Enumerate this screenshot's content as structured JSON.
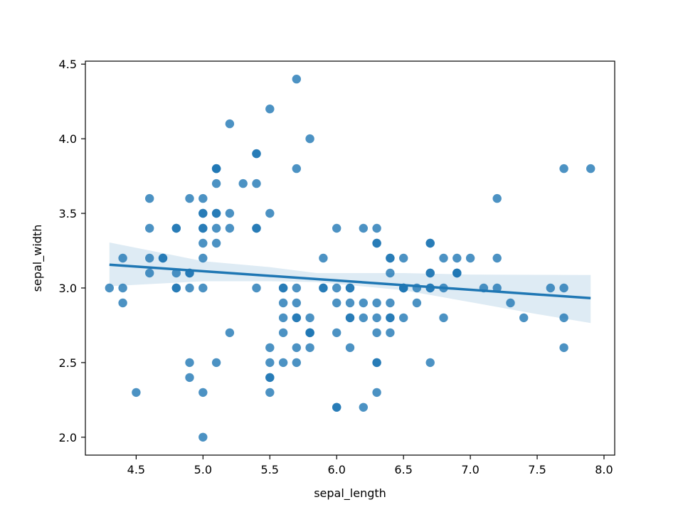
{
  "chart_data": {
    "type": "scatter",
    "title": "",
    "xlabel": "sepal_length",
    "ylabel": "sepal_width",
    "xlim": [
      4.12,
      8.08
    ],
    "ylim": [
      1.88,
      4.52
    ],
    "xticks": [
      4.5,
      5.0,
      5.5,
      6.0,
      6.5,
      7.0,
      7.5,
      8.0
    ],
    "xtick_labels": [
      "4.5",
      "5.0",
      "5.5",
      "6.0",
      "6.5",
      "7.0",
      "7.5",
      "8.0"
    ],
    "yticks": [
      2.0,
      2.5,
      3.0,
      3.5,
      4.0,
      4.5
    ],
    "ytick_labels": [
      "2.0",
      "2.5",
      "3.0",
      "3.5",
      "4.0",
      "4.5"
    ],
    "grid": false,
    "point_color": "#1f77b4",
    "line_color": "#1f77b4",
    "band_color": "#1f77b4",
    "points": [
      [
        4.3,
        3.0
      ],
      [
        4.4,
        3.2
      ],
      [
        4.4,
        3.0
      ],
      [
        4.4,
        2.9
      ],
      [
        4.5,
        2.3
      ],
      [
        4.6,
        3.6
      ],
      [
        4.6,
        3.4
      ],
      [
        4.6,
        3.2
      ],
      [
        4.6,
        3.1
      ],
      [
        4.7,
        3.2
      ],
      [
        4.7,
        3.2
      ],
      [
        4.8,
        3.4
      ],
      [
        4.8,
        3.4
      ],
      [
        4.8,
        3.1
      ],
      [
        4.8,
        3.0
      ],
      [
        4.8,
        3.0
      ],
      [
        4.9,
        3.6
      ],
      [
        4.9,
        3.1
      ],
      [
        4.9,
        3.1
      ],
      [
        4.9,
        3.0
      ],
      [
        4.9,
        2.5
      ],
      [
        4.9,
        2.4
      ],
      [
        5.0,
        3.6
      ],
      [
        5.0,
        3.5
      ],
      [
        5.0,
        3.5
      ],
      [
        5.0,
        3.4
      ],
      [
        5.0,
        3.4
      ],
      [
        5.0,
        3.3
      ],
      [
        5.0,
        3.2
      ],
      [
        5.0,
        3.0
      ],
      [
        5.0,
        2.3
      ],
      [
        5.0,
        2.0
      ],
      [
        5.1,
        3.8
      ],
      [
        5.1,
        3.8
      ],
      [
        5.1,
        3.8
      ],
      [
        5.1,
        3.7
      ],
      [
        5.1,
        3.5
      ],
      [
        5.1,
        3.5
      ],
      [
        5.1,
        3.4
      ],
      [
        5.1,
        3.3
      ],
      [
        5.1,
        2.5
      ],
      [
        5.2,
        4.1
      ],
      [
        5.2,
        3.5
      ],
      [
        5.2,
        3.4
      ],
      [
        5.2,
        2.7
      ],
      [
        5.3,
        3.7
      ],
      [
        5.4,
        3.9
      ],
      [
        5.4,
        3.9
      ],
      [
        5.4,
        3.7
      ],
      [
        5.4,
        3.4
      ],
      [
        5.4,
        3.4
      ],
      [
        5.4,
        3.0
      ],
      [
        5.5,
        4.2
      ],
      [
        5.5,
        3.5
      ],
      [
        5.5,
        2.6
      ],
      [
        5.5,
        2.5
      ],
      [
        5.5,
        2.4
      ],
      [
        5.5,
        2.4
      ],
      [
        5.5,
        2.3
      ],
      [
        5.6,
        3.0
      ],
      [
        5.6,
        3.0
      ],
      [
        5.6,
        2.9
      ],
      [
        5.6,
        2.8
      ],
      [
        5.6,
        2.7
      ],
      [
        5.6,
        2.5
      ],
      [
        5.7,
        4.4
      ],
      [
        5.7,
        3.8
      ],
      [
        5.7,
        3.0
      ],
      [
        5.7,
        2.9
      ],
      [
        5.7,
        2.8
      ],
      [
        5.7,
        2.8
      ],
      [
        5.7,
        2.6
      ],
      [
        5.7,
        2.5
      ],
      [
        5.8,
        4.0
      ],
      [
        5.8,
        2.8
      ],
      [
        5.8,
        2.7
      ],
      [
        5.8,
        2.7
      ],
      [
        5.8,
        2.7
      ],
      [
        5.8,
        2.6
      ],
      [
        5.9,
        3.2
      ],
      [
        5.9,
        3.0
      ],
      [
        5.9,
        3.0
      ],
      [
        6.0,
        3.4
      ],
      [
        6.0,
        3.0
      ],
      [
        6.0,
        2.9
      ],
      [
        6.0,
        2.7
      ],
      [
        6.0,
        2.2
      ],
      [
        6.0,
        2.2
      ],
      [
        6.1,
        3.0
      ],
      [
        6.1,
        3.0
      ],
      [
        6.1,
        2.9
      ],
      [
        6.1,
        2.8
      ],
      [
        6.1,
        2.8
      ],
      [
        6.1,
        2.6
      ],
      [
        6.2,
        3.4
      ],
      [
        6.2,
        2.9
      ],
      [
        6.2,
        2.8
      ],
      [
        6.2,
        2.2
      ],
      [
        6.3,
        3.4
      ],
      [
        6.3,
        3.3
      ],
      [
        6.3,
        3.3
      ],
      [
        6.3,
        2.9
      ],
      [
        6.3,
        2.8
      ],
      [
        6.3,
        2.7
      ],
      [
        6.3,
        2.5
      ],
      [
        6.3,
        2.5
      ],
      [
        6.3,
        2.3
      ],
      [
        6.4,
        3.2
      ],
      [
        6.4,
        3.2
      ],
      [
        6.4,
        3.1
      ],
      [
        6.4,
        2.9
      ],
      [
        6.4,
        2.8
      ],
      [
        6.4,
        2.8
      ],
      [
        6.4,
        2.7
      ],
      [
        6.5,
        3.2
      ],
      [
        6.5,
        3.0
      ],
      [
        6.5,
        3.0
      ],
      [
        6.5,
        3.0
      ],
      [
        6.5,
        2.8
      ],
      [
        6.6,
        3.0
      ],
      [
        6.6,
        2.9
      ],
      [
        6.7,
        3.3
      ],
      [
        6.7,
        3.3
      ],
      [
        6.7,
        3.1
      ],
      [
        6.7,
        3.1
      ],
      [
        6.7,
        3.0
      ],
      [
        6.7,
        3.0
      ],
      [
        6.7,
        2.5
      ],
      [
        6.8,
        3.2
      ],
      [
        6.8,
        3.0
      ],
      [
        6.8,
        2.8
      ],
      [
        6.9,
        3.2
      ],
      [
        6.9,
        3.1
      ],
      [
        6.9,
        3.1
      ],
      [
        6.9,
        3.1
      ],
      [
        7.0,
        3.2
      ],
      [
        7.1,
        3.0
      ],
      [
        7.2,
        3.6
      ],
      [
        7.2,
        3.2
      ],
      [
        7.2,
        3.0
      ],
      [
        7.3,
        2.9
      ],
      [
        7.4,
        2.8
      ],
      [
        7.6,
        3.0
      ],
      [
        7.7,
        3.8
      ],
      [
        7.7,
        3.0
      ],
      [
        7.7,
        2.8
      ],
      [
        7.7,
        2.6
      ],
      [
        7.9,
        3.8
      ]
    ],
    "regression_line": [
      [
        4.3,
        3.156
      ],
      [
        7.9,
        2.932
      ]
    ],
    "confidence_band": {
      "x": [
        4.3,
        5.0,
        5.5,
        5.85,
        6.5,
        7.0,
        7.5,
        7.9
      ],
      "upper": [
        3.305,
        3.18,
        3.14,
        3.1,
        3.1,
        3.09,
        3.088,
        3.087
      ],
      "lower": [
        3.012,
        3.045,
        3.045,
        3.04,
        2.985,
        2.905,
        2.825,
        2.765
      ]
    }
  }
}
